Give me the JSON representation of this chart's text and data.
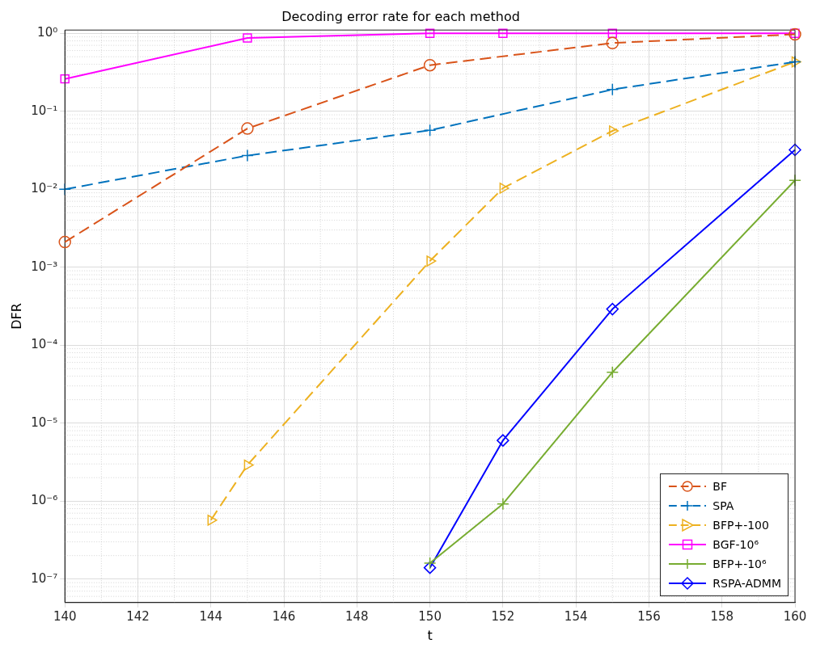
{
  "chart_data": {
    "type": "line",
    "title": "Decoding error rate for each method",
    "xlabel": "t",
    "ylabel": "DFR",
    "log": "y",
    "grid": true,
    "legend": "bottom right",
    "xlim": [
      140,
      160
    ],
    "xticks": [
      140,
      142,
      144,
      146,
      148,
      150,
      152,
      154,
      156,
      158,
      160
    ],
    "ylim": [
      5e-08,
      1.1
    ],
    "yticks": [
      {
        "value": 1e-07,
        "label": "10⁻⁷"
      },
      {
        "value": 1e-06,
        "label": "10⁻⁶"
      },
      {
        "value": 1e-05,
        "label": "10⁻⁵"
      },
      {
        "value": 0.0001,
        "label": "10⁻⁴"
      },
      {
        "value": 0.001,
        "label": "10⁻³"
      },
      {
        "value": 0.01,
        "label": "10⁻²"
      },
      {
        "value": 0.1,
        "label": "10⁻¹"
      },
      {
        "value": 1,
        "label": "10⁰"
      }
    ],
    "series": [
      {
        "name": "BF",
        "color": "#d95319",
        "marker": "circle",
        "line_style": "dashed",
        "x": [
          140,
          145,
          150,
          155,
          160
        ],
        "values": [
          0.0021,
          0.06,
          0.39,
          0.75,
          0.97
        ]
      },
      {
        "name": "SPA",
        "color": "#0072bd",
        "marker": "cross",
        "line_style": "dashed",
        "x": [
          140,
          145,
          150,
          155,
          160
        ],
        "values": [
          0.01,
          0.027,
          0.057,
          0.19,
          0.43
        ]
      },
      {
        "name": "BFP+-100",
        "color": "#edb120",
        "marker": "triangle",
        "line_style": "dashed",
        "x": [
          144,
          145,
          150,
          152,
          155,
          160
        ],
        "values": [
          5.7e-07,
          2.9e-06,
          0.0012,
          0.0103,
          0.056,
          0.43
        ]
      },
      {
        "name": "BGF-10⁶",
        "color": "#ff00ff",
        "marker": "square",
        "line_style": "solid",
        "x": [
          140,
          145,
          150,
          152,
          155,
          160
        ],
        "values": [
          0.26,
          0.87,
          1,
          1,
          1,
          1
        ]
      },
      {
        "name": "BFP+-10⁶",
        "color": "#77ac30",
        "marker": "cross",
        "line_style": "solid",
        "x": [
          150,
          152,
          155,
          160
        ],
        "values": [
          1.6e-07,
          9.2e-07,
          4.5e-05,
          0.013
        ]
      },
      {
        "name": "RSPA-ADMM",
        "color": "#0000ff",
        "marker": "diamond",
        "line_style": "solid",
        "x": [
          150,
          152,
          155,
          160
        ],
        "values": [
          1.4e-07,
          6e-06,
          0.00029,
          0.032
        ]
      }
    ]
  }
}
